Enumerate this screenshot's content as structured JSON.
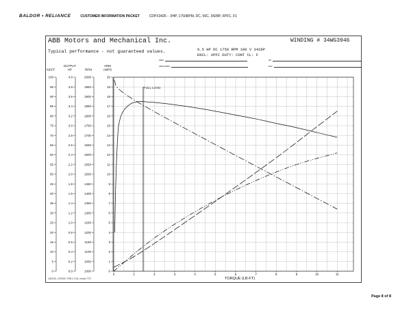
{
  "header": {
    "brand": "BALDOR • RELIANCE",
    "section": "CUSTOMER INFORMATION PACKET",
    "document": "CDPX3426 - .5HP, 1750RPM, DC, 56C, 3428P, XPFC, F1"
  },
  "sheet": {
    "company": "ABB Motors and Mechanical Inc.",
    "subtitle": "Typical performance - not guaranteed values.",
    "winding": "WINDING # 34WG3946",
    "specs_line1": "0.5 HP  DC  1750 RPM  180 V  3428P",
    "specs_line2": "ENCL: XPFC  DUTY: CONT  CL: F",
    "form_fields": [
      "ARM",
      "ARM AMPS",
      "HP",
      "EFF"
    ],
    "fine_print": "1/8/2021, 3CR000, POB 2.3.3A, reload 7737"
  },
  "footer": {
    "page": "Page 8 of 8"
  },
  "chart_data": {
    "type": "line",
    "title": "",
    "xlabel": "TORQUE (LB-FT)",
    "xlim": [
      0,
      11.8
    ],
    "x_ticks": [
      0,
      1,
      2,
      3,
      4,
      5,
      6,
      7,
      8,
      9,
      10,
      11
    ],
    "x_tick_labels": [
      "0",
      "1",
      "2",
      "3",
      "4",
      "5",
      "6",
      "7",
      "8",
      "9",
      "10",
      "11"
    ],
    "full_load": {
      "label": "FULL LOAD",
      "x": 1.45
    },
    "axes": [
      {
        "header": "%EFF",
        "ticks": [
          "0",
          "5",
          "10",
          "15",
          "20",
          "25",
          "30",
          "35",
          "40",
          "45",
          "50",
          "55",
          "60",
          "65",
          "70",
          "75",
          "80",
          "85",
          "90",
          "95",
          "100"
        ]
      },
      {
        "header": "OUTPUT HP",
        "ticks": [
          "0.0",
          "0.2",
          "0.4",
          "0.6",
          "0.8",
          "1.0",
          "1.2",
          "1.4",
          "1.6",
          "1.8",
          "2.0",
          "2.2",
          "2.4",
          "2.6",
          "2.8",
          "3.0",
          "3.2",
          "3.4",
          "3.6",
          "3.8",
          "4.0"
        ]
      },
      {
        "header": "RPM",
        "ticks": [
          "1000",
          "1050",
          "1100",
          "1150",
          "1200",
          "1250",
          "1300",
          "1350",
          "1400",
          "1450",
          "1500",
          "1550",
          "1600",
          "1650",
          "1700",
          "1750",
          "1800",
          "1850",
          "1900",
          "1950",
          "2000"
        ]
      },
      {
        "header": "ARM AMPS",
        "ticks": [
          "0",
          "1",
          "2",
          "3",
          "4",
          "5",
          "6",
          "7",
          "8",
          "9",
          "10",
          "11",
          "12",
          "13",
          "14",
          "15",
          "16",
          "17",
          "18",
          "19",
          "20"
        ]
      }
    ],
    "series": [
      {
        "style": "solid",
        "axis": "%EFF",
        "x": [
          0.05,
          0.1,
          0.2,
          0.3,
          0.5,
          0.8,
          1.0,
          1.3,
          1.6,
          2.0,
          3.0,
          4.0,
          5.0,
          6.0,
          7.0,
          8.0,
          9.0,
          10.0,
          11.0
        ],
        "y": [
          20,
          45,
          70,
          78,
          83,
          86,
          87,
          87.5,
          87.3,
          87,
          85.8,
          84.3,
          82.5,
          80.5,
          78.5,
          76.2,
          74,
          71.5,
          69
        ]
      },
      {
        "style": "dash-dot",
        "axis": "RPM",
        "x": [
          0,
          1.45,
          11
        ],
        "y": [
          1985,
          1855,
          1320
        ]
      },
      {
        "style": "long-dash",
        "axis": "ARM AMPS",
        "x": [
          0,
          1.45,
          5,
          8,
          10,
          11
        ],
        "y": [
          0.4,
          2.1,
          7.2,
          11.7,
          14.9,
          16.5
        ]
      },
      {
        "style": "dash-dot-dot",
        "axis": "OUTPUT HP",
        "x": [
          0,
          1.45,
          3,
          5,
          7,
          9,
          11
        ],
        "y": [
          0.0,
          0.51,
          0.97,
          1.46,
          1.87,
          2.2,
          2.44
        ]
      }
    ]
  }
}
